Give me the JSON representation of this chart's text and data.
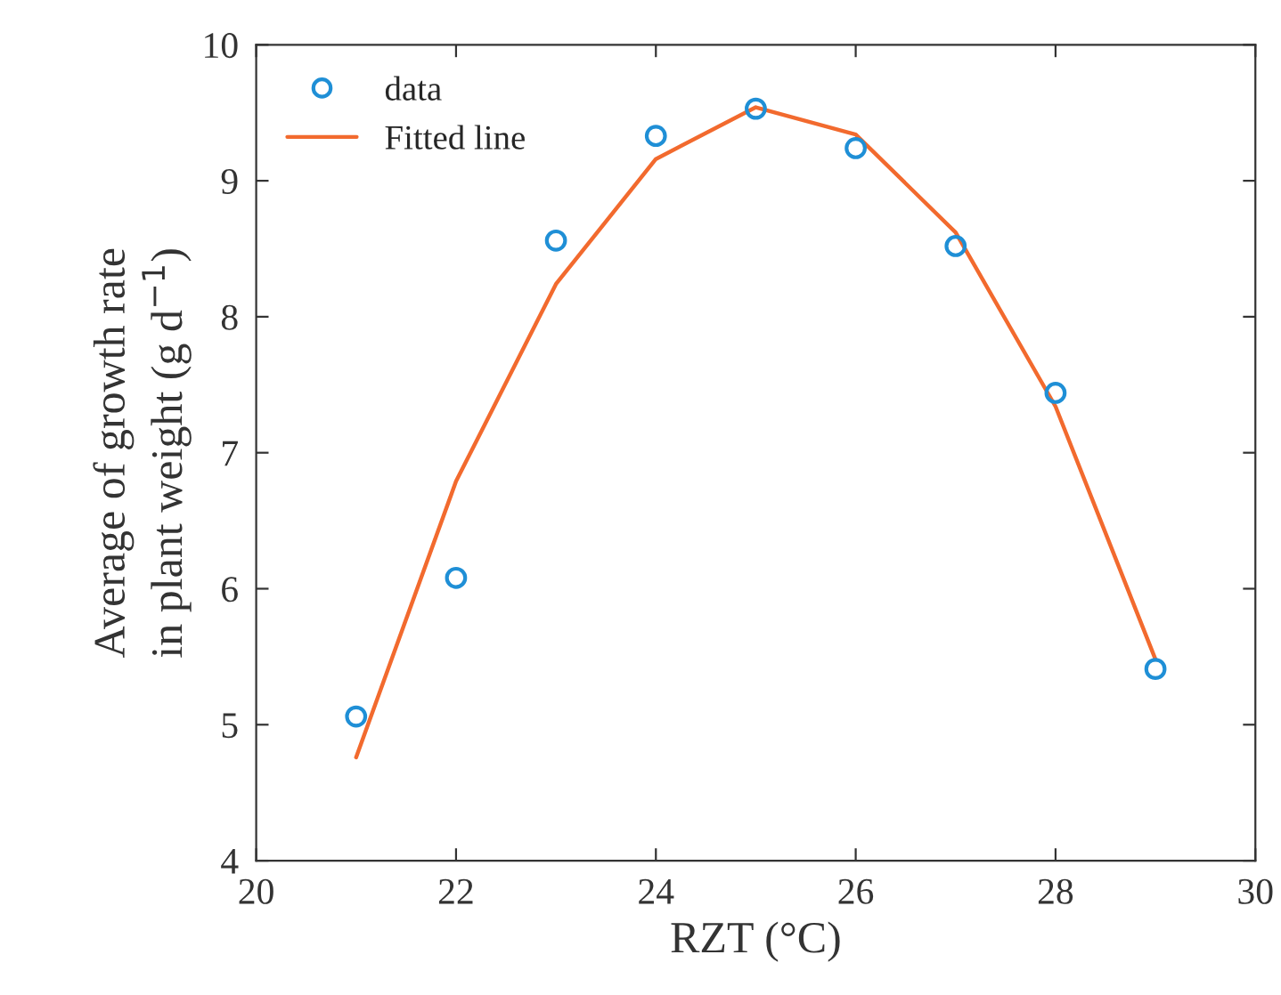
{
  "chart_data": {
    "type": "scatter",
    "xlabel": "RZT (°C)",
    "ylabel": "Average of growth rate\nin plant weight (g d$^{−1}$)",
    "x": [
      21,
      22,
      23,
      24,
      25,
      26,
      27,
      28,
      29
    ],
    "series": [
      {
        "name": "data",
        "color": "#1f8fd6",
        "marker": "circle",
        "values": [
          5.06,
          6.08,
          8.56,
          9.33,
          9.53,
          9.24,
          8.52,
          7.44,
          5.41
        ]
      },
      {
        "name": "Fitted line",
        "type": "line",
        "color": "#f26a2e",
        "marker": "none",
        "line_style": "solid",
        "values": [
          4.76,
          6.79,
          8.24,
          9.16,
          9.54,
          9.34,
          8.62,
          7.34,
          5.48
        ]
      }
    ],
    "xlim": [
      20,
      30
    ],
    "xticks": [
      20,
      22,
      24,
      26,
      28,
      30
    ],
    "ylim": [
      4,
      10
    ],
    "yticks": [
      4,
      5,
      6,
      7,
      8,
      9,
      10
    ],
    "grid": false,
    "legend": "top left"
  }
}
